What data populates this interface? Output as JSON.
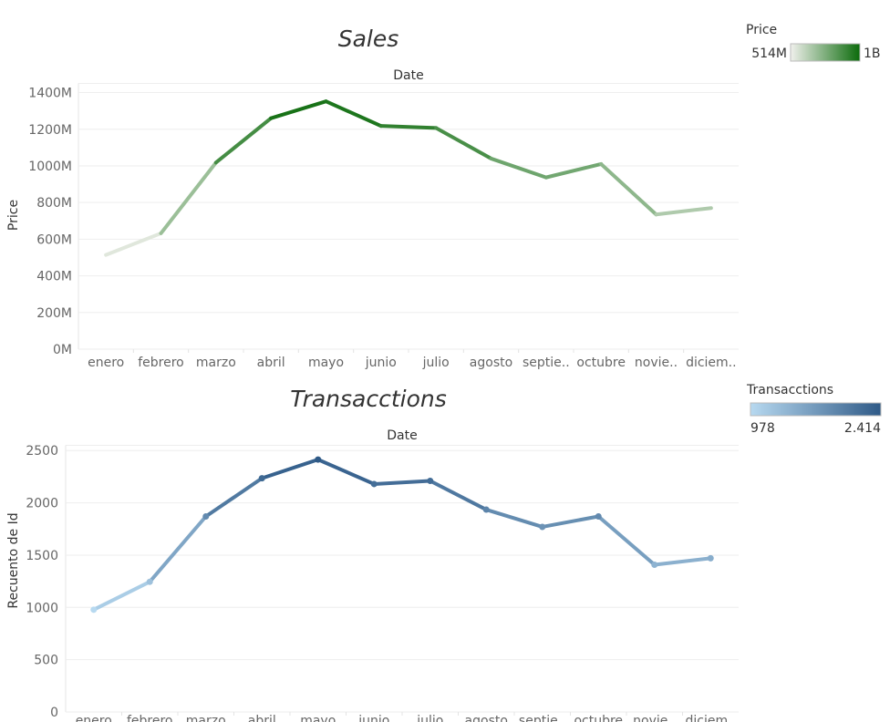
{
  "chart_data": [
    {
      "type": "line",
      "title": "Sales",
      "column_header": "Date",
      "ylabel": "Price",
      "categories": [
        "enero",
        "febrero",
        "marzo",
        "abril",
        "mayo",
        "junio",
        "julio",
        "agosto",
        "septie..",
        "octubre",
        "novie..",
        "diciem.."
      ],
      "values": [
        514,
        632,
        1018,
        1260,
        1352,
        1218,
        1207,
        1040,
        937,
        1010,
        735,
        770
      ],
      "value_unit": "M",
      "ylim": [
        0,
        1450
      ],
      "yticks": [
        0,
        200,
        400,
        600,
        800,
        1000,
        1200,
        1400
      ],
      "ytick_labels": [
        "0M",
        "200M",
        "400M",
        "600M",
        "800M",
        "1000M",
        "1200M",
        "1400M"
      ],
      "markers": false,
      "color_legend": {
        "title": "Price",
        "min_label": "514M",
        "max_label": "1B",
        "min_color": "#f0f0ec",
        "max_color": "#0b6b0b"
      }
    },
    {
      "type": "line",
      "title": "Transacctions",
      "column_header": "Date",
      "ylabel": "Recuento de Id",
      "categories": [
        "enero",
        "febrero",
        "marzo",
        "abril",
        "mayo",
        "junio",
        "julio",
        "agosto",
        "septie..",
        "octubre",
        "novie..",
        "diciem.."
      ],
      "values": [
        978,
        1245,
        1870,
        2235,
        2414,
        2180,
        2210,
        1935,
        1770,
        1870,
        1408,
        1470
      ],
      "ylim": [
        0,
        2550
      ],
      "yticks": [
        0,
        500,
        1000,
        1500,
        2000,
        2500
      ],
      "ytick_labels": [
        "0",
        "500",
        "1000",
        "1500",
        "2000",
        "2500"
      ],
      "markers": true,
      "color_legend": {
        "title": "Transacctions",
        "min_label": "978",
        "max_label": "2.414",
        "min_color": "#b7d9f0",
        "max_color": "#2f5a87"
      }
    }
  ]
}
